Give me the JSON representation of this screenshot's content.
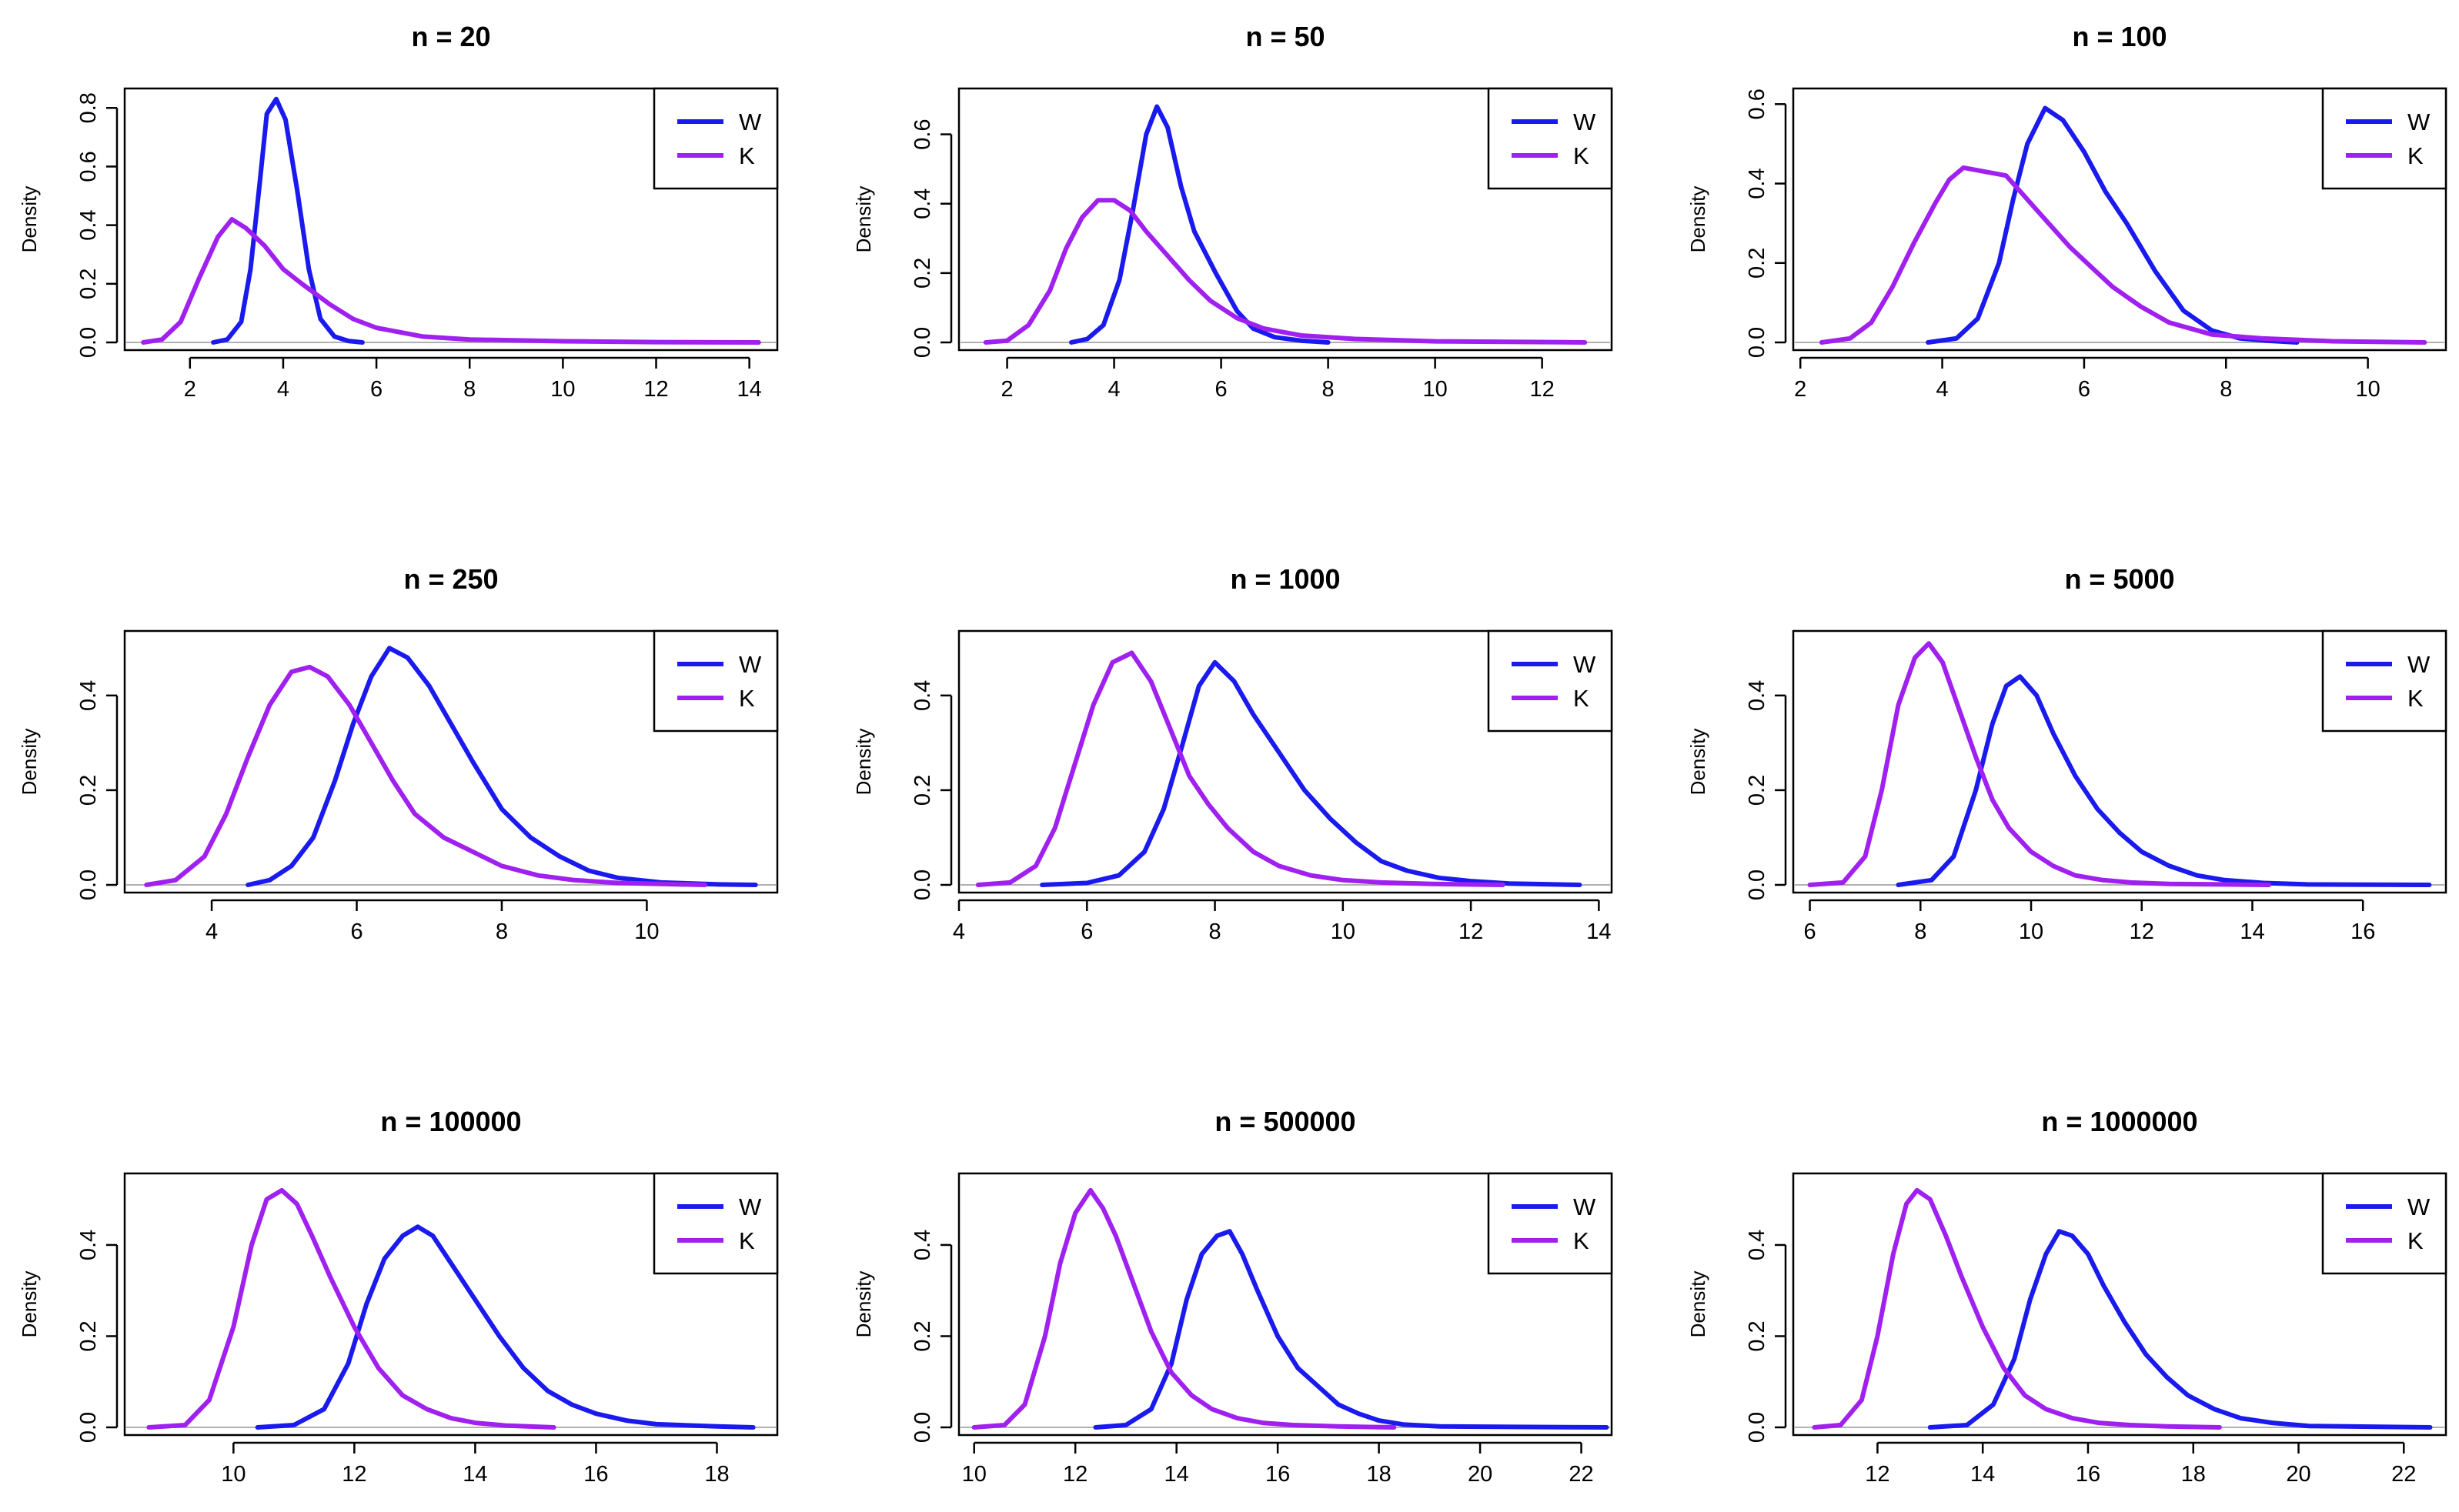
{
  "figure": {
    "type": "density-grid",
    "rows": 3,
    "cols": 3
  },
  "chart_data": [
    {
      "type": "line",
      "title": "n = 20",
      "xlabel": "",
      "ylabel": "Density",
      "xlim": [
        0.6,
        14.6
      ],
      "ylim": [
        0,
        0.84
      ],
      "xticks": [
        2,
        4,
        6,
        8,
        10,
        12,
        14
      ],
      "yticks": [
        0.0,
        0.2,
        0.4,
        0.6,
        0.8
      ],
      "legend": {
        "position": "top-right",
        "entries": [
          "W",
          "K"
        ]
      },
      "series": [
        {
          "name": "W",
          "color": "#1a1aee",
          "x": [
            2.5,
            2.8,
            3.1,
            3.3,
            3.5,
            3.65,
            3.85,
            4.05,
            4.3,
            4.55,
            4.8,
            5.1,
            5.4,
            5.7
          ],
          "y": [
            0,
            0.01,
            0.07,
            0.25,
            0.55,
            0.78,
            0.83,
            0.76,
            0.52,
            0.25,
            0.08,
            0.02,
            0.005,
            0
          ]
        },
        {
          "name": "K",
          "color": "#a020f0",
          "x": [
            1.0,
            1.4,
            1.8,
            2.2,
            2.6,
            2.9,
            3.2,
            3.6,
            4.0,
            4.4,
            5.0,
            5.5,
            6.0,
            7.0,
            8.0,
            10.0,
            12.0,
            14.2
          ],
          "y": [
            0,
            0.01,
            0.07,
            0.22,
            0.36,
            0.42,
            0.39,
            0.33,
            0.25,
            0.2,
            0.13,
            0.08,
            0.05,
            0.02,
            0.01,
            0.004,
            0.001,
            0
          ]
        }
      ]
    },
    {
      "type": "line",
      "title": "n = 50",
      "xlabel": "",
      "ylabel": "Density",
      "xlim": [
        1.1,
        13.3
      ],
      "ylim": [
        0,
        0.71
      ],
      "xticks": [
        2,
        4,
        6,
        8,
        10,
        12
      ],
      "yticks": [
        0.0,
        0.2,
        0.4,
        0.6
      ],
      "legend": {
        "position": "top-right",
        "entries": [
          "W",
          "K"
        ]
      },
      "series": [
        {
          "name": "W",
          "color": "#1a1aee",
          "x": [
            3.2,
            3.5,
            3.8,
            4.1,
            4.35,
            4.6,
            4.8,
            5.0,
            5.25,
            5.5,
            5.9,
            6.3,
            6.6,
            7.0,
            7.5,
            8.0
          ],
          "y": [
            0,
            0.01,
            0.05,
            0.18,
            0.38,
            0.6,
            0.68,
            0.62,
            0.45,
            0.32,
            0.2,
            0.09,
            0.04,
            0.015,
            0.005,
            0
          ]
        },
        {
          "name": "K",
          "color": "#a020f0",
          "x": [
            1.6,
            2.0,
            2.4,
            2.8,
            3.1,
            3.4,
            3.7,
            4.0,
            4.3,
            4.6,
            5.0,
            5.4,
            5.8,
            6.3,
            6.8,
            7.5,
            8.5,
            10.0,
            12.8
          ],
          "y": [
            0,
            0.005,
            0.05,
            0.15,
            0.27,
            0.36,
            0.41,
            0.41,
            0.38,
            0.32,
            0.25,
            0.18,
            0.12,
            0.07,
            0.04,
            0.02,
            0.01,
            0.003,
            0
          ]
        }
      ]
    },
    {
      "type": "line",
      "title": "n = 100",
      "xlabel": "",
      "ylabel": "Density",
      "xlim": [
        1.9,
        11.1
      ],
      "ylim": [
        0,
        0.62
      ],
      "xticks": [
        2,
        4,
        6,
        8,
        10
      ],
      "yticks": [
        0.0,
        0.2,
        0.4,
        0.6
      ],
      "legend": {
        "position": "top-right",
        "entries": [
          "W",
          "K"
        ]
      },
      "series": [
        {
          "name": "W",
          "color": "#1a1aee",
          "x": [
            3.8,
            4.2,
            4.5,
            4.8,
            5.0,
            5.2,
            5.45,
            5.7,
            6.0,
            6.3,
            6.6,
            7.0,
            7.4,
            7.8,
            8.2,
            8.6,
            9.0
          ],
          "y": [
            0,
            0.01,
            0.06,
            0.2,
            0.36,
            0.5,
            0.59,
            0.56,
            0.48,
            0.38,
            0.3,
            0.18,
            0.08,
            0.03,
            0.01,
            0.004,
            0
          ]
        },
        {
          "name": "K",
          "color": "#a020f0",
          "x": [
            2.3,
            2.7,
            3.0,
            3.3,
            3.6,
            3.9,
            4.1,
            4.3,
            4.6,
            4.9,
            5.2,
            5.5,
            5.8,
            6.1,
            6.4,
            6.8,
            7.2,
            7.8,
            8.5,
            9.5,
            10.8
          ],
          "y": [
            0,
            0.01,
            0.05,
            0.14,
            0.25,
            0.35,
            0.41,
            0.44,
            0.43,
            0.42,
            0.36,
            0.3,
            0.24,
            0.19,
            0.14,
            0.09,
            0.05,
            0.02,
            0.01,
            0.003,
            0
          ]
        }
      ]
    },
    {
      "type": "line",
      "title": "n = 250",
      "xlabel": "",
      "ylabel": "Density",
      "xlim": [
        2.8,
        11.8
      ],
      "ylim": [
        0,
        0.52
      ],
      "xticks": [
        4,
        6,
        8,
        10
      ],
      "yticks": [
        0.0,
        0.2,
        0.4
      ],
      "legend": {
        "position": "top-right",
        "entries": [
          "W",
          "K"
        ]
      },
      "series": [
        {
          "name": "W",
          "color": "#1a1aee",
          "x": [
            4.5,
            4.8,
            5.1,
            5.4,
            5.7,
            5.95,
            6.2,
            6.45,
            6.7,
            7.0,
            7.3,
            7.6,
            8.0,
            8.4,
            8.8,
            9.2,
            9.6,
            10.2,
            11.0,
            11.5
          ],
          "y": [
            0,
            0.01,
            0.04,
            0.1,
            0.22,
            0.34,
            0.44,
            0.5,
            0.48,
            0.42,
            0.34,
            0.26,
            0.16,
            0.1,
            0.06,
            0.03,
            0.015,
            0.005,
            0.001,
            0
          ]
        },
        {
          "name": "K",
          "color": "#a020f0",
          "x": [
            3.1,
            3.5,
            3.9,
            4.2,
            4.5,
            4.8,
            5.1,
            5.35,
            5.6,
            5.9,
            6.2,
            6.5,
            6.8,
            7.2,
            7.6,
            8.0,
            8.5,
            9.0,
            9.6,
            10.2,
            10.8
          ],
          "y": [
            0,
            0.01,
            0.06,
            0.15,
            0.27,
            0.38,
            0.45,
            0.46,
            0.44,
            0.38,
            0.3,
            0.22,
            0.15,
            0.1,
            0.07,
            0.04,
            0.02,
            0.01,
            0.004,
            0.002,
            0
          ]
        }
      ]
    },
    {
      "type": "line",
      "title": "n = 1000",
      "xlabel": "",
      "ylabel": "Density",
      "xlim": [
        4.0,
        14.2
      ],
      "ylim": [
        0,
        0.52
      ],
      "xticks": [
        4,
        6,
        8,
        10,
        12,
        14
      ],
      "yticks": [
        0.0,
        0.2,
        0.4
      ],
      "legend": {
        "position": "top-right",
        "entries": [
          "W",
          "K"
        ]
      },
      "series": [
        {
          "name": "W",
          "color": "#1a1aee",
          "x": [
            5.3,
            6.0,
            6.5,
            6.9,
            7.2,
            7.5,
            7.75,
            8.0,
            8.3,
            8.6,
            9.0,
            9.4,
            9.8,
            10.2,
            10.6,
            11.0,
            11.5,
            12.0,
            12.6,
            13.7
          ],
          "y": [
            0,
            0.004,
            0.02,
            0.07,
            0.16,
            0.3,
            0.42,
            0.47,
            0.43,
            0.36,
            0.28,
            0.2,
            0.14,
            0.09,
            0.05,
            0.03,
            0.015,
            0.008,
            0.003,
            0
          ]
        },
        {
          "name": "K",
          "color": "#a020f0",
          "x": [
            4.3,
            4.8,
            5.2,
            5.5,
            5.8,
            6.1,
            6.4,
            6.7,
            7.0,
            7.3,
            7.6,
            7.9,
            8.2,
            8.6,
            9.0,
            9.5,
            10.0,
            10.6,
            11.4,
            12.5
          ],
          "y": [
            0,
            0.005,
            0.04,
            0.12,
            0.25,
            0.38,
            0.47,
            0.49,
            0.43,
            0.33,
            0.23,
            0.17,
            0.12,
            0.07,
            0.04,
            0.02,
            0.01,
            0.005,
            0.002,
            0
          ]
        }
      ]
    },
    {
      "type": "line",
      "title": "n = 5000",
      "xlabel": "",
      "ylabel": "Density",
      "xlim": [
        5.7,
        17.5
      ],
      "ylim": [
        0,
        0.52
      ],
      "xticks": [
        6,
        8,
        10,
        12,
        14,
        16
      ],
      "yticks": [
        0.0,
        0.2,
        0.4
      ],
      "legend": {
        "position": "top-right",
        "entries": [
          "W",
          "K"
        ]
      },
      "series": [
        {
          "name": "W",
          "color": "#1a1aee",
          "x": [
            7.6,
            8.2,
            8.6,
            9.0,
            9.3,
            9.55,
            9.8,
            10.1,
            10.4,
            10.8,
            11.2,
            11.6,
            12.0,
            12.5,
            13.0,
            13.5,
            14.2,
            15.0,
            17.2
          ],
          "y": [
            0,
            0.01,
            0.06,
            0.2,
            0.34,
            0.42,
            0.44,
            0.4,
            0.32,
            0.23,
            0.16,
            0.11,
            0.07,
            0.04,
            0.02,
            0.01,
            0.004,
            0.001,
            0
          ]
        },
        {
          "name": "K",
          "color": "#a020f0",
          "x": [
            6.0,
            6.6,
            7.0,
            7.3,
            7.6,
            7.9,
            8.15,
            8.4,
            8.7,
            9.0,
            9.3,
            9.6,
            10.0,
            10.4,
            10.8,
            11.3,
            11.8,
            12.5,
            13.5,
            14.3
          ],
          "y": [
            0,
            0.005,
            0.06,
            0.2,
            0.38,
            0.48,
            0.51,
            0.47,
            0.37,
            0.27,
            0.18,
            0.12,
            0.07,
            0.04,
            0.02,
            0.01,
            0.005,
            0.002,
            0.001,
            0
          ]
        }
      ]
    },
    {
      "type": "line",
      "title": "n = 100000",
      "xlabel": "",
      "ylabel": "Density",
      "xlim": [
        8.2,
        19.0
      ],
      "ylim": [
        0,
        0.54
      ],
      "xticks": [
        10,
        12,
        14,
        16,
        18
      ],
      "yticks": [
        0.0,
        0.2,
        0.4
      ],
      "legend": {
        "position": "top-right",
        "entries": [
          "W",
          "K"
        ]
      },
      "series": [
        {
          "name": "W",
          "color": "#1a1aee",
          "x": [
            10.4,
            11.0,
            11.5,
            11.9,
            12.2,
            12.5,
            12.8,
            13.05,
            13.3,
            13.6,
            14.0,
            14.4,
            14.8,
            15.2,
            15.6,
            16.0,
            16.5,
            17.0,
            18.0,
            18.6
          ],
          "y": [
            0,
            0.005,
            0.04,
            0.14,
            0.27,
            0.37,
            0.42,
            0.44,
            0.42,
            0.36,
            0.28,
            0.2,
            0.13,
            0.08,
            0.05,
            0.03,
            0.015,
            0.007,
            0.002,
            0
          ]
        },
        {
          "name": "K",
          "color": "#a020f0",
          "x": [
            8.6,
            9.2,
            9.6,
            10.0,
            10.3,
            10.55,
            10.8,
            11.05,
            11.3,
            11.6,
            12.0,
            12.4,
            12.8,
            13.2,
            13.6,
            14.0,
            14.5,
            15.3
          ],
          "y": [
            0,
            0.005,
            0.06,
            0.22,
            0.4,
            0.5,
            0.52,
            0.49,
            0.42,
            0.33,
            0.22,
            0.13,
            0.07,
            0.04,
            0.02,
            0.01,
            0.004,
            0
          ]
        }
      ]
    },
    {
      "type": "line",
      "title": "n = 500000",
      "xlabel": "",
      "ylabel": "Density",
      "xlim": [
        9.7,
        22.6
      ],
      "ylim": [
        0,
        0.54
      ],
      "xticks": [
        10,
        12,
        14,
        16,
        18,
        20,
        22
      ],
      "yticks": [
        0.0,
        0.2,
        0.4
      ],
      "legend": {
        "position": "top-right",
        "entries": [
          "W",
          "K"
        ]
      },
      "series": [
        {
          "name": "W",
          "color": "#1a1aee",
          "x": [
            12.4,
            13.0,
            13.5,
            13.9,
            14.2,
            14.5,
            14.8,
            15.05,
            15.3,
            15.6,
            16.0,
            16.4,
            16.8,
            17.2,
            17.6,
            18.0,
            18.5,
            19.2,
            22.5
          ],
          "y": [
            0,
            0.005,
            0.04,
            0.14,
            0.28,
            0.38,
            0.42,
            0.43,
            0.38,
            0.3,
            0.2,
            0.13,
            0.09,
            0.05,
            0.03,
            0.015,
            0.006,
            0.002,
            0
          ]
        },
        {
          "name": "K",
          "color": "#a020f0",
          "x": [
            10.0,
            10.6,
            11.0,
            11.4,
            11.7,
            12.0,
            12.3,
            12.55,
            12.8,
            13.1,
            13.5,
            13.9,
            14.3,
            14.7,
            15.2,
            15.7,
            16.3,
            17.2,
            18.3
          ],
          "y": [
            0,
            0.005,
            0.05,
            0.2,
            0.36,
            0.47,
            0.52,
            0.48,
            0.42,
            0.33,
            0.21,
            0.12,
            0.07,
            0.04,
            0.02,
            0.01,
            0.005,
            0.002,
            0
          ]
        }
      ]
    },
    {
      "type": "line",
      "title": "n = 1000000",
      "xlabel": "",
      "ylabel": "Density",
      "xlim": [
        10.4,
        22.8
      ],
      "ylim": [
        0,
        0.54
      ],
      "xticks": [
        12,
        14,
        16,
        18,
        20,
        22
      ],
      "yticks": [
        0.0,
        0.2,
        0.4
      ],
      "legend": {
        "position": "top-right",
        "entries": [
          "W",
          "K"
        ]
      },
      "series": [
        {
          "name": "W",
          "color": "#1a1aee",
          "x": [
            13.0,
            13.7,
            14.2,
            14.6,
            14.9,
            15.2,
            15.45,
            15.7,
            16.0,
            16.3,
            16.7,
            17.1,
            17.5,
            17.9,
            18.4,
            18.9,
            19.5,
            20.2,
            22.5
          ],
          "y": [
            0,
            0.005,
            0.05,
            0.15,
            0.28,
            0.38,
            0.43,
            0.42,
            0.38,
            0.31,
            0.23,
            0.16,
            0.11,
            0.07,
            0.04,
            0.02,
            0.01,
            0.003,
            0
          ]
        },
        {
          "name": "K",
          "color": "#a020f0",
          "x": [
            10.8,
            11.3,
            11.7,
            12.0,
            12.3,
            12.55,
            12.75,
            13.0,
            13.3,
            13.6,
            14.0,
            14.4,
            14.8,
            15.2,
            15.7,
            16.2,
            16.8,
            17.5,
            18.5
          ],
          "y": [
            0,
            0.005,
            0.06,
            0.2,
            0.38,
            0.49,
            0.52,
            0.5,
            0.42,
            0.33,
            0.22,
            0.13,
            0.07,
            0.04,
            0.02,
            0.01,
            0.005,
            0.002,
            0
          ]
        }
      ]
    }
  ]
}
